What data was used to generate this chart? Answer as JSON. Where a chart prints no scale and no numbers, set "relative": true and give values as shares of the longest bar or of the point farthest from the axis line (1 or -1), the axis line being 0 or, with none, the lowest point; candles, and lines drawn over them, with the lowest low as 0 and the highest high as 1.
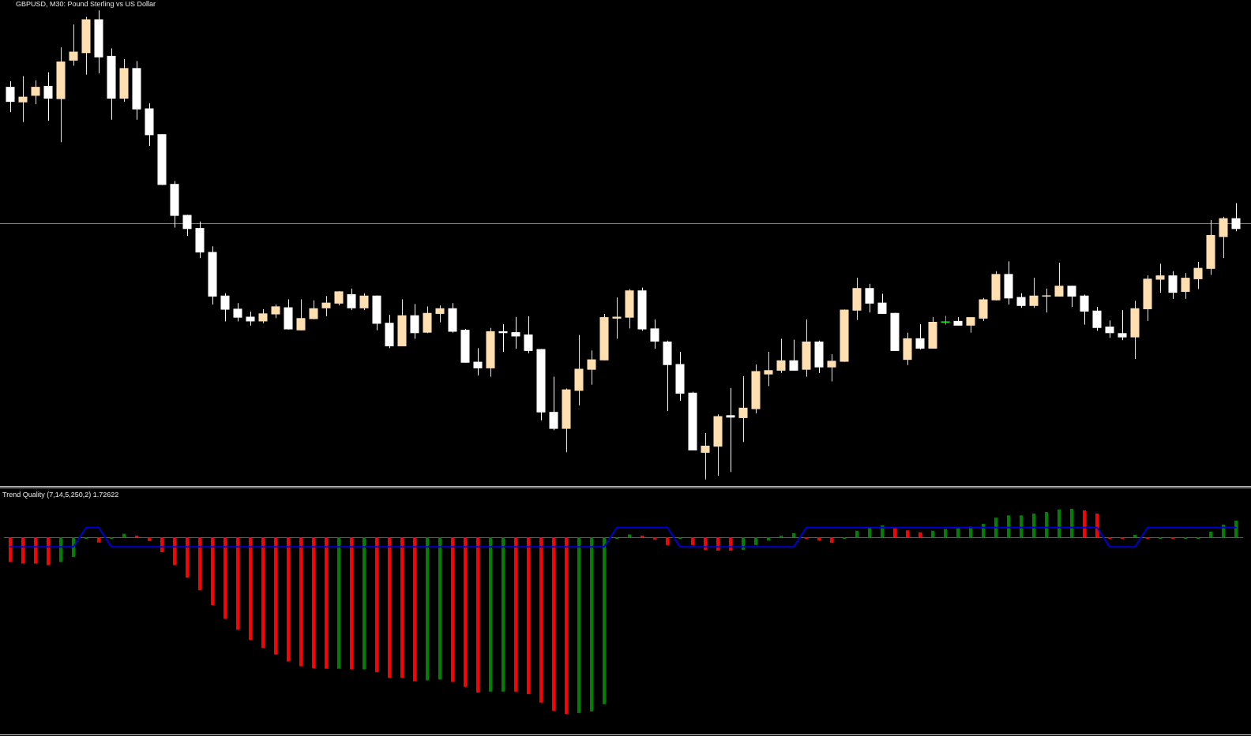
{
  "chart_data": [
    {
      "type": "candlestick",
      "title": "GBPUSD, M30: Pound Sterling vs US Dollar",
      "relative": true,
      "categories": [
        null,
        null,
        null,
        null,
        null,
        null,
        null,
        null,
        null,
        null,
        null,
        null,
        null,
        null,
        null,
        null,
        null,
        null,
        null,
        null,
        null,
        null,
        null,
        null,
        null,
        null,
        null,
        null,
        null,
        null,
        null,
        null,
        null,
        null,
        null,
        null,
        null,
        null,
        null,
        null,
        null,
        null,
        null,
        null,
        null,
        null,
        null,
        null,
        null,
        null,
        null,
        null,
        null,
        null,
        null,
        null,
        null,
        null,
        null,
        null,
        null,
        null,
        null,
        null,
        null,
        null,
        null,
        null,
        null,
        null,
        null,
        null,
        null,
        null,
        null,
        null,
        null,
        null,
        null,
        null,
        null,
        null,
        null,
        null,
        null,
        null,
        null,
        null,
        null,
        null,
        null,
        null,
        null,
        null,
        null,
        null,
        null,
        null
      ],
      "ohlc": [
        [
          0.837,
          0.849,
          0.783,
          0.805
        ],
        [
          0.804,
          0.86,
          0.762,
          0.816
        ],
        [
          0.818,
          0.851,
          0.8,
          0.837
        ],
        [
          0.839,
          0.868,
          0.765,
          0.812
        ],
        [
          0.811,
          0.921,
          0.719,
          0.891
        ],
        [
          0.893,
          0.97,
          0.882,
          0.912
        ],
        [
          0.909,
          0.986,
          0.863,
          0.981
        ],
        [
          0.981,
          1.0,
          0.866,
          0.9
        ],
        [
          0.903,
          0.919,
          0.767,
          0.812
        ],
        [
          0.812,
          0.896,
          0.805,
          0.877
        ],
        [
          0.877,
          0.892,
          0.767,
          0.789
        ],
        [
          0.791,
          0.802,
          0.711,
          0.734
        ],
        [
          0.736,
          0.736,
          0.628,
          0.628
        ],
        [
          0.63,
          0.636,
          0.537,
          0.562
        ],
        [
          0.564,
          0.564,
          0.519,
          0.534
        ],
        [
          0.536,
          0.55,
          0.472,
          0.484
        ],
        [
          0.485,
          0.497,
          0.373,
          0.39
        ],
        [
          0.392,
          0.397,
          0.337,
          0.362
        ],
        [
          0.364,
          0.376,
          0.337,
          0.345
        ],
        [
          0.347,
          0.358,
          0.328,
          0.337
        ],
        [
          0.337,
          0.363,
          0.333,
          0.354
        ],
        [
          0.352,
          0.373,
          0.344,
          0.369
        ],
        [
          0.367,
          0.384,
          0.32,
          0.32
        ],
        [
          0.318,
          0.384,
          0.318,
          0.344
        ],
        [
          0.342,
          0.382,
          0.342,
          0.365
        ],
        [
          0.365,
          0.391,
          0.348,
          0.377
        ],
        [
          0.375,
          0.401,
          0.371,
          0.401
        ],
        [
          0.395,
          0.407,
          0.361,
          0.365
        ],
        [
          0.365,
          0.397,
          0.361,
          0.392
        ],
        [
          0.392,
          0.392,
          0.318,
          0.332
        ],
        [
          0.334,
          0.351,
          0.28,
          0.284
        ],
        [
          0.284,
          0.384,
          0.284,
          0.35
        ],
        [
          0.35,
          0.374,
          0.3,
          0.312
        ],
        [
          0.313,
          0.369,
          0.312,
          0.355
        ],
        [
          0.353,
          0.371,
          0.335,
          0.365
        ],
        [
          0.365,
          0.376,
          0.313,
          0.315
        ],
        [
          0.319,
          0.321,
          0.249,
          0.249
        ],
        [
          0.251,
          0.28,
          0.222,
          0.237
        ],
        [
          0.237,
          0.323,
          0.219,
          0.316
        ],
        [
          0.316,
          0.331,
          0.272,
          0.312
        ],
        [
          0.314,
          0.346,
          0.279,
          0.305
        ],
        [
          0.309,
          0.348,
          0.269,
          0.274
        ],
        [
          0.278,
          0.278,
          0.126,
          0.143
        ],
        [
          0.144,
          0.219,
          0.105,
          0.108
        ],
        [
          0.108,
          0.194,
          0.058,
          0.192
        ],
        [
          0.189,
          0.308,
          0.158,
          0.236
        ],
        [
          0.234,
          0.275,
          0.202,
          0.256
        ],
        [
          0.254,
          0.353,
          0.254,
          0.346
        ],
        [
          0.343,
          0.388,
          0.3,
          0.347
        ],
        [
          0.345,
          0.406,
          0.322,
          0.403
        ],
        [
          0.403,
          0.409,
          0.317,
          0.32
        ],
        [
          0.322,
          0.341,
          0.279,
          0.294
        ],
        [
          0.294,
          0.296,
          0.146,
          0.244
        ],
        [
          0.246,
          0.272,
          0.168,
          0.183
        ],
        [
          0.185,
          0.187,
          0.062,
          0.062
        ],
        [
          0.057,
          0.099,
          0.0,
          0.072
        ],
        [
          0.07,
          0.139,
          0.008,
          0.135
        ],
        [
          0.137,
          0.195,
          0.016,
          0.132
        ],
        [
          0.131,
          0.22,
          0.08,
          0.153
        ],
        [
          0.15,
          0.245,
          0.141,
          0.231
        ],
        [
          0.224,
          0.272,
          0.199,
          0.233
        ],
        [
          0.232,
          0.3,
          0.227,
          0.254
        ],
        [
          0.254,
          0.298,
          0.232,
          0.232
        ],
        [
          0.234,
          0.341,
          0.219,
          0.294
        ],
        [
          0.294,
          0.296,
          0.227,
          0.239
        ],
        [
          0.239,
          0.267,
          0.209,
          0.253
        ],
        [
          0.251,
          0.362,
          0.251,
          0.362
        ],
        [
          0.36,
          0.43,
          0.34,
          0.408
        ],
        [
          0.408,
          0.417,
          0.356,
          0.375
        ],
        [
          0.377,
          0.396,
          0.353,
          0.353
        ],
        [
          0.355,
          0.355,
          0.274,
          0.274
        ],
        [
          0.255,
          0.313,
          0.244,
          0.301
        ],
        [
          0.301,
          0.331,
          0.277,
          0.279
        ],
        [
          0.279,
          0.346,
          0.279,
          0.336
        ],
        [
          0.337,
          0.349,
          0.33,
          0.337
        ],
        [
          0.338,
          0.346,
          0.328,
          0.328
        ],
        [
          0.328,
          0.346,
          0.313,
          0.346
        ],
        [
          0.343,
          0.387,
          0.338,
          0.384
        ],
        [
          0.382,
          0.444,
          0.382,
          0.438
        ],
        [
          0.438,
          0.465,
          0.373,
          0.386
        ],
        [
          0.389,
          0.397,
          0.366,
          0.37
        ],
        [
          0.37,
          0.43,
          0.366,
          0.392
        ],
        [
          0.39,
          0.407,
          0.356,
          0.392
        ],
        [
          0.39,
          0.462,
          0.39,
          0.413
        ],
        [
          0.413,
          0.413,
          0.368,
          0.39
        ],
        [
          0.392,
          0.394,
          0.33,
          0.358
        ],
        [
          0.36,
          0.368,
          0.317,
          0.323
        ],
        [
          0.326,
          0.339,
          0.302,
          0.312
        ],
        [
          0.312,
          0.361,
          0.297,
          0.303
        ],
        [
          0.303,
          0.381,
          0.257,
          0.365
        ],
        [
          0.363,
          0.435,
          0.338,
          0.428
        ],
        [
          0.426,
          0.46,
          0.398,
          0.435
        ],
        [
          0.435,
          0.444,
          0.385,
          0.398
        ],
        [
          0.4,
          0.44,
          0.385,
          0.43
        ],
        [
          0.427,
          0.464,
          0.406,
          0.451
        ],
        [
          0.449,
          0.553,
          0.436,
          0.521
        ],
        [
          0.517,
          0.56,
          0.472,
          0.557
        ],
        [
          0.557,
          0.589,
          0.529,
          0.534
        ]
      ],
      "colors": [
        "#ffffff",
        "#ffdfb0",
        "#ffdfb0",
        "#ffffff",
        "#ffdfb0",
        "#ffdfb0",
        "#ffdfb0",
        "#ffffff",
        "#ffffff",
        "#ffdfb0",
        "#ffffff",
        "#ffffff",
        "#ffffff",
        "#ffffff",
        "#ffffff",
        "#ffffff",
        "#ffffff",
        "#ffffff",
        "#ffffff",
        "#ffffff",
        "#ffdfb0",
        "#ffdfb0",
        "#ffffff",
        "#ffdfb0",
        "#ffdfb0",
        "#ffdfb0",
        "#ffdfb0",
        "#ffffff",
        "#ffdfb0",
        "#ffffff",
        "#ffffff",
        "#ffdfb0",
        "#ffffff",
        "#ffdfb0",
        "#ffdfb0",
        "#ffffff",
        "#ffffff",
        "#ffffff",
        "#ffdfb0",
        "#ffffff",
        "#ffffff",
        "#ffffff",
        "#ffffff",
        "#ffffff",
        "#ffdfb0",
        "#ffdfb0",
        "#ffdfb0",
        "#ffdfb0",
        "#ffdfb0",
        "#ffdfb0",
        "#ffffff",
        "#ffffff",
        "#ffffff",
        "#ffffff",
        "#ffffff",
        "#ffdfb0",
        "#ffdfb0",
        "#ffffff",
        "#ffdfb0",
        "#ffdfb0",
        "#ffdfb0",
        "#ffdfb0",
        "#ffffff",
        "#ffdfb0",
        "#ffffff",
        "#ffdfb0",
        "#ffdfb0",
        "#ffdfb0",
        "#ffffff",
        "#ffffff",
        "#ffffff",
        "#ffdfb0",
        "#ffffff",
        "#ffdfb0",
        "#00ff00",
        "#ffffff",
        "#ffdfb0",
        "#ffdfb0",
        "#ffdfb0",
        "#ffffff",
        "#ffffff",
        "#ffdfb0",
        "#ffdfb0",
        "#ffdfb0",
        "#ffffff",
        "#ffffff",
        "#ffffff",
        "#ffffff",
        "#ffffff",
        "#ffdfb0",
        "#ffdfb0",
        "#ffdfb0",
        "#ffffff",
        "#ffdfb0",
        "#ffdfb0",
        "#ffdfb0",
        "#ffdfb0",
        "#ffffff"
      ],
      "ref_lines": [
        {
          "axis": "y",
          "value": 0.546,
          "color": "#778899"
        }
      ]
    },
    {
      "type": "bar",
      "title": "Trend Quality (7,14,5,250,2) 1.72622",
      "relative": true,
      "marker": "none",
      "categories": [
        null,
        null,
        null,
        null,
        null,
        null,
        null,
        null,
        null,
        null,
        null,
        null,
        null,
        null,
        null,
        null,
        null,
        null,
        null,
        null,
        null,
        null,
        null,
        null,
        null,
        null,
        null,
        null,
        null,
        null,
        null,
        null,
        null,
        null,
        null,
        null,
        null,
        null,
        null,
        null,
        null,
        null,
        null,
        null,
        null,
        null,
        null,
        null,
        null,
        null,
        null,
        null,
        null,
        null,
        null,
        null,
        null,
        null,
        null,
        null,
        null,
        null,
        null,
        null,
        null,
        null,
        null,
        null,
        null,
        null,
        null,
        null,
        null,
        null,
        null,
        null,
        null,
        null,
        null,
        null,
        null,
        null,
        null,
        null,
        null,
        null,
        null,
        null,
        null,
        null,
        null,
        null,
        null,
        null,
        null,
        null,
        null,
        null
      ],
      "series": [
        {
          "type": "bar",
          "colors": [
            "#ff0000",
            "#ff0000",
            "#ff0000",
            "#ff0000",
            "#008000",
            "#008000",
            "#008000",
            "#ff0000",
            "#008000",
            "#008000",
            "#ff0000",
            "#ff0000",
            "#ff0000",
            "#ff0000",
            "#ff0000",
            "#ff0000",
            "#ff0000",
            "#ff0000",
            "#ff0000",
            "#ff0000",
            "#ff0000",
            "#ff0000",
            "#ff0000",
            "#ff0000",
            "#ff0000",
            "#ff0000",
            "#008000",
            "#ff0000",
            "#008000",
            "#ff0000",
            "#ff0000",
            "#ff0000",
            "#ff0000",
            "#008000",
            "#008000",
            "#ff0000",
            "#ff0000",
            "#ff0000",
            "#008000",
            "#008000",
            "#ff0000",
            "#ff0000",
            "#ff0000",
            "#ff0000",
            "#ff0000",
            "#008000",
            "#008000",
            "#008000",
            "#008000",
            "#008000",
            "#ff0000",
            "#ff0000",
            "#ff0000",
            "#008000",
            "#ff0000",
            "#ff0000",
            "#ff0000",
            "#ff0000",
            "#008000",
            "#008000",
            "#008000",
            "#008000",
            "#008000",
            "#ff0000",
            "#ff0000",
            "#ff0000",
            "#008000",
            "#008000",
            "#008000",
            "#008000",
            "#ff0000",
            "#ff0000",
            "#ff0000",
            "#008000",
            "#008000",
            "#008000",
            "#008000",
            "#008000",
            "#008000",
            "#008000",
            "#008000",
            "#008000",
            "#008000",
            "#008000",
            "#008000",
            "#ff0000",
            "#ff0000",
            "#ff0000",
            "#ff0000",
            "#008000",
            "#ff0000",
            "#008000",
            "#ff0000",
            "#008000",
            "#008000",
            "#008000",
            "#008000",
            "#008000"
          ],
          "values": [
            -0.14,
            -0.149,
            -0.149,
            -0.158,
            -0.14,
            -0.112,
            -0.007,
            -0.03,
            -0.007,
            0.02,
            0.007,
            -0.021,
            -0.085,
            -0.158,
            -0.229,
            -0.3,
            -0.384,
            -0.462,
            -0.524,
            -0.581,
            -0.627,
            -0.664,
            -0.703,
            -0.73,
            -0.741,
            -0.744,
            -0.744,
            -0.748,
            -0.748,
            -0.764,
            -0.796,
            -0.796,
            -0.815,
            -0.81,
            -0.805,
            -0.819,
            -0.847,
            -0.879,
            -0.874,
            -0.874,
            -0.874,
            -0.888,
            -0.936,
            -0.982,
            -1,
            -0.995,
            -0.986,
            -0.945,
            -0.007,
            0.016,
            0.005,
            -0.014,
            -0.044,
            -0.007,
            -0.044,
            -0.071,
            -0.076,
            -0.076,
            -0.071,
            -0.044,
            -0.018,
            0.007,
            0.023,
            -0.007,
            -0.018,
            -0.032,
            -0.005,
            0.037,
            0.058,
            0.067,
            0.051,
            0.039,
            0.028,
            0.037,
            0.046,
            0.051,
            0.06,
            0.076,
            0.111,
            0.124,
            0.124,
            0.134,
            0.143,
            0.157,
            0.161,
            0.152,
            0.134,
            -0.007,
            -0.005,
            0.014,
            -0.007,
            -0.007,
            -0.008,
            -0.008,
            -0.007,
            0.032,
            0.071,
            0.094
          ]
        },
        {
          "type": "line",
          "color": "#0000cd",
          "values": [
            -0.055,
            -0.055,
            -0.055,
            -0.055,
            -0.055,
            -0.055,
            0.055,
            0.055,
            -0.055,
            -0.055,
            -0.055,
            -0.055,
            -0.055,
            -0.055,
            -0.055,
            -0.055,
            -0.055,
            -0.055,
            -0.055,
            -0.055,
            -0.055,
            -0.055,
            -0.055,
            -0.055,
            -0.055,
            -0.055,
            -0.055,
            -0.055,
            -0.055,
            -0.055,
            -0.055,
            -0.055,
            -0.055,
            -0.055,
            -0.055,
            -0.055,
            -0.055,
            -0.055,
            -0.055,
            -0.055,
            -0.055,
            -0.055,
            -0.055,
            -0.055,
            -0.055,
            -0.055,
            -0.055,
            -0.055,
            0.055,
            0.055,
            0.055,
            0.055,
            0.055,
            -0.055,
            -0.055,
            -0.055,
            -0.055,
            -0.055,
            -0.055,
            -0.055,
            -0.055,
            -0.055,
            -0.055,
            0.055,
            0.055,
            0.055,
            0.055,
            0.055,
            0.055,
            0.055,
            0.055,
            0.055,
            0.055,
            0.055,
            0.055,
            0.055,
            0.055,
            0.055,
            0.055,
            0.055,
            0.055,
            0.055,
            0.055,
            0.055,
            0.055,
            0.055,
            0.055,
            -0.055,
            -0.055,
            -0.055,
            0.055,
            0.055,
            0.055,
            0.055,
            0.055,
            0.055,
            0.055,
            0.055
          ]
        }
      ]
    }
  ]
}
